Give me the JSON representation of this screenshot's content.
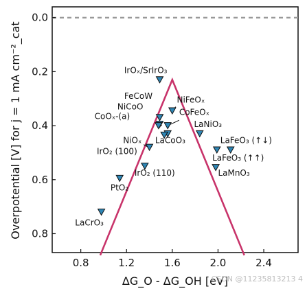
{
  "chart_data": {
    "type": "scatter",
    "xlabel": "ΔG_O - ΔG_OH [eV]",
    "ylabel": "Overpotential [V] for j = 1 mA cm⁻²_cat",
    "xlim": [
      0.55,
      2.7
    ],
    "ylim": [
      0.87,
      -0.04
    ],
    "y_inverted": true,
    "x_ticks": [
      0.8,
      1.2,
      1.6,
      2.0,
      2.4
    ],
    "y_ticks": [
      0.0,
      0.2,
      0.4,
      0.6,
      0.8
    ],
    "x_tick_labels": [
      "0.8",
      "1.2",
      "1.6",
      "2.0",
      "2.4"
    ],
    "y_tick_labels": [
      "0.0",
      "0.2",
      "0.4",
      "0.6",
      "0.8"
    ],
    "zero_line": {
      "y": 0.0,
      "style": "dashed",
      "color": "#999999"
    },
    "volcano": {
      "points": [
        [
          0.97,
          0.88
        ],
        [
          1.6,
          0.23
        ],
        [
          2.23,
          0.88
        ]
      ],
      "color": "#c8336a"
    },
    "marker": {
      "shape": "triangle-down",
      "fill": "#2e86b5",
      "stroke": "#111111"
    },
    "points": [
      {
        "x": 1.49,
        "y": 0.23,
        "label": "IrOₓ/SrIrO₃"
      },
      {
        "x": 1.49,
        "y": 0.37
      },
      {
        "x": 1.49,
        "y": 0.395
      },
      {
        "x": 1.48,
        "y": 0.4
      },
      {
        "x": 1.56,
        "y": 0.4
      },
      {
        "x": 1.6,
        "y": 0.345,
        "label": "NiFeOₓ"
      },
      {
        "x": 1.56,
        "y": 0.43
      },
      {
        "x": 1.53,
        "y": 0.435
      },
      {
        "x": 1.84,
        "y": 0.43,
        "label": "LaNiO₃"
      },
      {
        "x": 1.4,
        "y": 0.48,
        "label": "NiOₓ"
      },
      {
        "x": 1.36,
        "y": 0.55,
        "label": "IrO₂ (110)"
      },
      {
        "x": 1.99,
        "y": 0.49
      },
      {
        "x": 2.11,
        "y": 0.49,
        "label": "LaFeO₃ (↑↓)"
      },
      {
        "x": 1.98,
        "y": 0.555,
        "label": "LaMnO₃"
      },
      {
        "x": 1.14,
        "y": 0.595,
        "label": "PtO₂"
      },
      {
        "x": 0.98,
        "y": 0.72,
        "label": "LaCrO₃"
      }
    ],
    "labels": [
      {
        "text": "IrOₓ/SrIrO₃",
        "x": 1.18,
        "y": 0.205
      },
      {
        "text": "FeCoW",
        "x": 1.18,
        "y": 0.3
      },
      {
        "text": "NiCoO",
        "x": 1.12,
        "y": 0.34
      },
      {
        "text": "CoOₓ-(a)",
        "x": 0.92,
        "y": 0.375
      },
      {
        "text": "NiFeOₓ",
        "x": 1.64,
        "y": 0.315
      },
      {
        "text": "CoFeOₓ",
        "x": 1.66,
        "y": 0.36
      },
      {
        "text": "LaNiO₃",
        "x": 1.79,
        "y": 0.405
      },
      {
        "text": "LaCoO₃",
        "x": 1.45,
        "y": 0.465
      },
      {
        "text": "NiOₓ",
        "x": 1.17,
        "y": 0.465
      },
      {
        "text": "IrO₂ (100)",
        "x": 0.94,
        "y": 0.505
      },
      {
        "text": "IrO₂ (110)",
        "x": 1.27,
        "y": 0.585
      },
      {
        "text": "LaFeO₃ (↑↓)",
        "x": 2.02,
        "y": 0.465
      },
      {
        "text": "LaFeO₃ (↑↑)",
        "x": 1.95,
        "y": 0.53
      },
      {
        "text": "LaMnO₃",
        "x": 2.0,
        "y": 0.585
      },
      {
        "text": "PtO₂",
        "x": 1.06,
        "y": 0.64
      },
      {
        "text": "LaCrO₃",
        "x": 0.75,
        "y": 0.77
      }
    ],
    "pointers": [
      {
        "from": [
          1.51,
          0.36
        ],
        "to": [
          1.49,
          0.37
        ]
      },
      {
        "from": [
          1.51,
          0.4
        ],
        "to": [
          1.49,
          0.395
        ]
      },
      {
        "from": [
          1.63,
          0.33
        ],
        "to": [
          1.6,
          0.345
        ]
      },
      {
        "from": [
          1.66,
          0.38
        ],
        "to": [
          1.56,
          0.4
        ]
      },
      {
        "from": [
          1.35,
          0.47
        ],
        "to": [
          1.39,
          0.48
        ]
      }
    ],
    "watermark": "CSDN @11235813213 4"
  }
}
